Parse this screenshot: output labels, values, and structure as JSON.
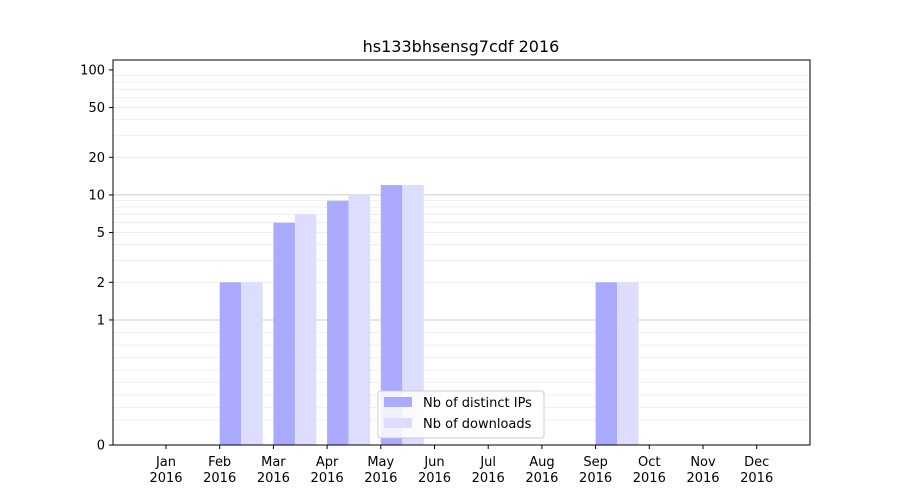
{
  "chart_data": {
    "type": "bar",
    "title": "hs133bhsensg7cdf 2016",
    "xlabel": "",
    "ylabel": "",
    "y_scale": "symlog",
    "ylim": [
      0,
      120
    ],
    "yticks": [
      0,
      1,
      2,
      5,
      10,
      20,
      50,
      100
    ],
    "categories": [
      {
        "month": "Jan",
        "year": "2016"
      },
      {
        "month": "Feb",
        "year": "2016"
      },
      {
        "month": "Mar",
        "year": "2016"
      },
      {
        "month": "Apr",
        "year": "2016"
      },
      {
        "month": "May",
        "year": "2016"
      },
      {
        "month": "Jun",
        "year": "2016"
      },
      {
        "month": "Jul",
        "year": "2016"
      },
      {
        "month": "Aug",
        "year": "2016"
      },
      {
        "month": "Sep",
        "year": "2016"
      },
      {
        "month": "Oct",
        "year": "2016"
      },
      {
        "month": "Nov",
        "year": "2016"
      },
      {
        "month": "Dec",
        "year": "2016"
      }
    ],
    "series": [
      {
        "name": "Nb of distinct IPs",
        "color": "#aaaaff",
        "values": [
          0,
          2,
          6,
          9,
          12,
          0,
          0,
          0,
          2,
          0,
          0,
          0
        ]
      },
      {
        "name": "Nb of downloads",
        "color": "#ddddff",
        "values": [
          0,
          2,
          7,
          10,
          12,
          0,
          0,
          0,
          2,
          0,
          0,
          0
        ]
      }
    ],
    "grid": {
      "major_lines_at": [
        1,
        10
      ],
      "minor": true
    },
    "legend_position": "bottom-center"
  }
}
